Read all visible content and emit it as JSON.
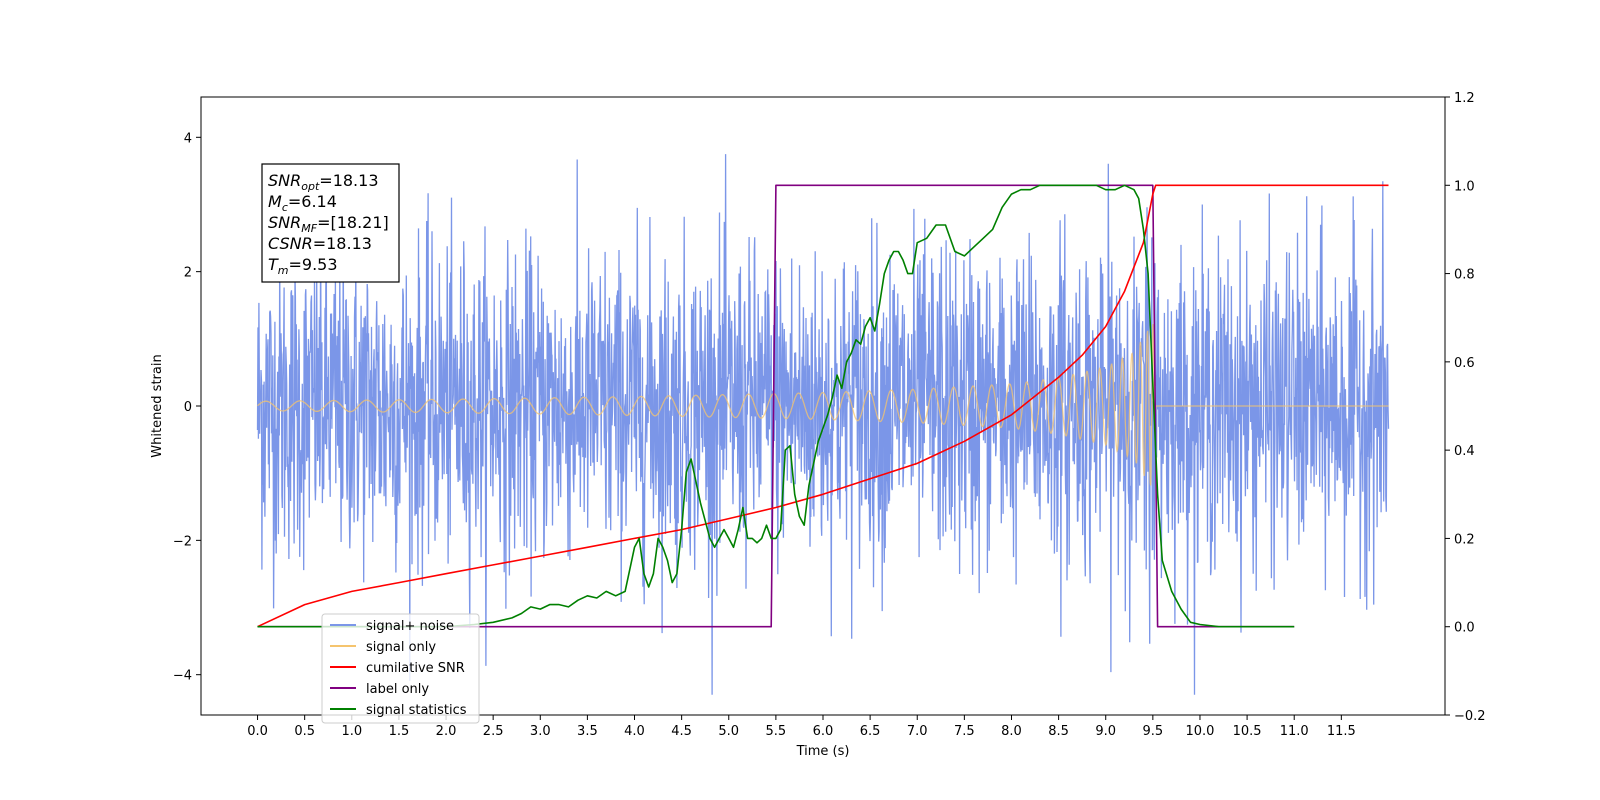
{
  "chart_data": {
    "type": "line",
    "xlabel": "Time (s)",
    "ylabel": "Whitened strain",
    "xlim": [
      -0.6,
      12.6
    ],
    "ylim_left": [
      -4.6,
      4.6
    ],
    "ylim_right": [
      -0.2,
      1.2
    ],
    "xticks": [
      0.0,
      0.5,
      1.0,
      1.5,
      2.0,
      2.5,
      3.0,
      3.5,
      4.0,
      4.5,
      5.0,
      5.5,
      6.0,
      6.5,
      7.0,
      7.5,
      8.0,
      8.5,
      9.0,
      9.5,
      10.0,
      10.5,
      11.0,
      11.5
    ],
    "xtick_labels": [
      "0.0",
      "0.5",
      "1.0",
      "1.5",
      "2.0",
      "2.5",
      "3.0",
      "3.5",
      "4.0",
      "4.5",
      "5.0",
      "5.5",
      "6.0",
      "6.5",
      "7.0",
      "7.5",
      "8.0",
      "8.5",
      "9.0",
      "9.5",
      "10.0",
      "10.5",
      "11.0",
      "11.5"
    ],
    "yticks_left": [
      -4,
      -2,
      0,
      2,
      4
    ],
    "ytick_labels_left": [
      "−4",
      "−2",
      "0",
      "2",
      "4"
    ],
    "yticks_right": [
      -0.2,
      0.0,
      0.2,
      0.4,
      0.6,
      0.8,
      1.0,
      1.2
    ],
    "ytick_labels_right": [
      "−0.2",
      "0.0",
      "0.2",
      "0.4",
      "0.6",
      "0.8",
      "1.0",
      "1.2"
    ],
    "legend_position": "bottom-left",
    "annotation": [
      {
        "main": "SNR",
        "sub": "opt",
        "value": "=18.13"
      },
      {
        "main": "M",
        "sub": "c",
        "value": "=6.14"
      },
      {
        "main": "SNR",
        "sub": "MF",
        "value": "=[18.21]"
      },
      {
        "main": "CSNR",
        "sub": "",
        "value": "=18.13"
      },
      {
        "main": "T",
        "sub": "m",
        "value": "=9.53"
      }
    ],
    "series": [
      {
        "name": "signal+ noise",
        "color": "#7b96e8",
        "axis": "left",
        "noise_amplitude_approx": 3.0,
        "x_range": [
          0.0,
          12.0
        ]
      },
      {
        "name": "signal only",
        "color": "#f5c46e",
        "axis": "left",
        "envelope": {
          "x": [
            0.0,
            2.0,
            4.0,
            6.0,
            7.0,
            8.0,
            8.5,
            9.0,
            9.3,
            9.5,
            9.53,
            12.0
          ],
          "amp": [
            0.07,
            0.1,
            0.14,
            0.2,
            0.25,
            0.33,
            0.42,
            0.58,
            0.8,
            1.25,
            0.0,
            0.0
          ]
        }
      },
      {
        "name": "cumilative SNR",
        "color": "#ff0000",
        "axis": "right",
        "x": [
          0.0,
          0.5,
          1.0,
          1.5,
          2.0,
          2.5,
          3.0,
          3.5,
          4.0,
          4.5,
          5.0,
          5.5,
          6.0,
          6.5,
          7.0,
          7.5,
          8.0,
          8.5,
          8.75,
          9.0,
          9.2,
          9.4,
          9.5,
          9.53,
          12.0
        ],
        "y": [
          0.0,
          0.05,
          0.08,
          0.1,
          0.12,
          0.14,
          0.16,
          0.18,
          0.2,
          0.22,
          0.245,
          0.27,
          0.3,
          0.335,
          0.37,
          0.42,
          0.48,
          0.565,
          0.615,
          0.68,
          0.76,
          0.87,
          0.98,
          1.0,
          1.0
        ]
      },
      {
        "name": "label only",
        "color": "#800080",
        "axis": "right",
        "x": [
          0.0,
          5.45,
          5.5,
          9.5,
          9.55,
          11.0
        ],
        "y": [
          0.0,
          0.0,
          1.0,
          1.0,
          0.0,
          0.0
        ]
      },
      {
        "name": "signal statistics",
        "color": "#008000",
        "axis": "right",
        "x": [
          0.0,
          0.5,
          1.0,
          1.5,
          2.0,
          2.3,
          2.5,
          2.7,
          2.8,
          2.9,
          3.0,
          3.1,
          3.2,
          3.3,
          3.4,
          3.5,
          3.6,
          3.7,
          3.8,
          3.9,
          4.0,
          4.05,
          4.1,
          4.15,
          4.2,
          4.25,
          4.3,
          4.35,
          4.4,
          4.45,
          4.5,
          4.55,
          4.6,
          4.65,
          4.7,
          4.75,
          4.8,
          4.85,
          4.9,
          4.95,
          5.0,
          5.05,
          5.1,
          5.15,
          5.2,
          5.25,
          5.3,
          5.35,
          5.4,
          5.45,
          5.5,
          5.55,
          5.6,
          5.65,
          5.7,
          5.75,
          5.8,
          5.85,
          5.9,
          5.95,
          6.0,
          6.05,
          6.1,
          6.15,
          6.2,
          6.25,
          6.3,
          6.35,
          6.4,
          6.45,
          6.5,
          6.55,
          6.6,
          6.65,
          6.7,
          6.75,
          6.8,
          6.85,
          6.9,
          6.95,
          7.0,
          7.1,
          7.2,
          7.3,
          7.4,
          7.5,
          7.6,
          7.7,
          7.8,
          7.9,
          8.0,
          8.1,
          8.2,
          8.3,
          8.4,
          8.5,
          8.6,
          8.7,
          8.8,
          8.9,
          9.0,
          9.1,
          9.2,
          9.3,
          9.35,
          9.4,
          9.45,
          9.5,
          9.55,
          9.6,
          9.7,
          9.8,
          9.9,
          10.0,
          10.2,
          10.5,
          11.0
        ],
        "y": [
          0.0,
          0.0,
          0.0,
          0.0,
          0.0,
          0.005,
          0.01,
          0.02,
          0.03,
          0.045,
          0.04,
          0.05,
          0.05,
          0.045,
          0.06,
          0.07,
          0.065,
          0.08,
          0.07,
          0.08,
          0.18,
          0.2,
          0.12,
          0.09,
          0.12,
          0.2,
          0.18,
          0.15,
          0.1,
          0.12,
          0.22,
          0.35,
          0.38,
          0.33,
          0.28,
          0.24,
          0.2,
          0.18,
          0.2,
          0.22,
          0.2,
          0.18,
          0.22,
          0.27,
          0.2,
          0.2,
          0.19,
          0.2,
          0.23,
          0.2,
          0.2,
          0.22,
          0.4,
          0.41,
          0.3,
          0.25,
          0.23,
          0.32,
          0.37,
          0.42,
          0.45,
          0.48,
          0.52,
          0.57,
          0.54,
          0.6,
          0.62,
          0.65,
          0.64,
          0.68,
          0.7,
          0.67,
          0.73,
          0.8,
          0.83,
          0.85,
          0.85,
          0.83,
          0.8,
          0.8,
          0.87,
          0.88,
          0.91,
          0.91,
          0.85,
          0.84,
          0.86,
          0.88,
          0.9,
          0.95,
          0.98,
          0.99,
          0.99,
          1.0,
          1.0,
          1.0,
          1.0,
          1.0,
          1.0,
          1.0,
          0.99,
          0.99,
          1.0,
          0.99,
          0.97,
          0.9,
          0.8,
          0.55,
          0.3,
          0.15,
          0.08,
          0.04,
          0.01,
          0.005,
          0.0,
          0.0,
          0.0
        ]
      }
    ]
  }
}
